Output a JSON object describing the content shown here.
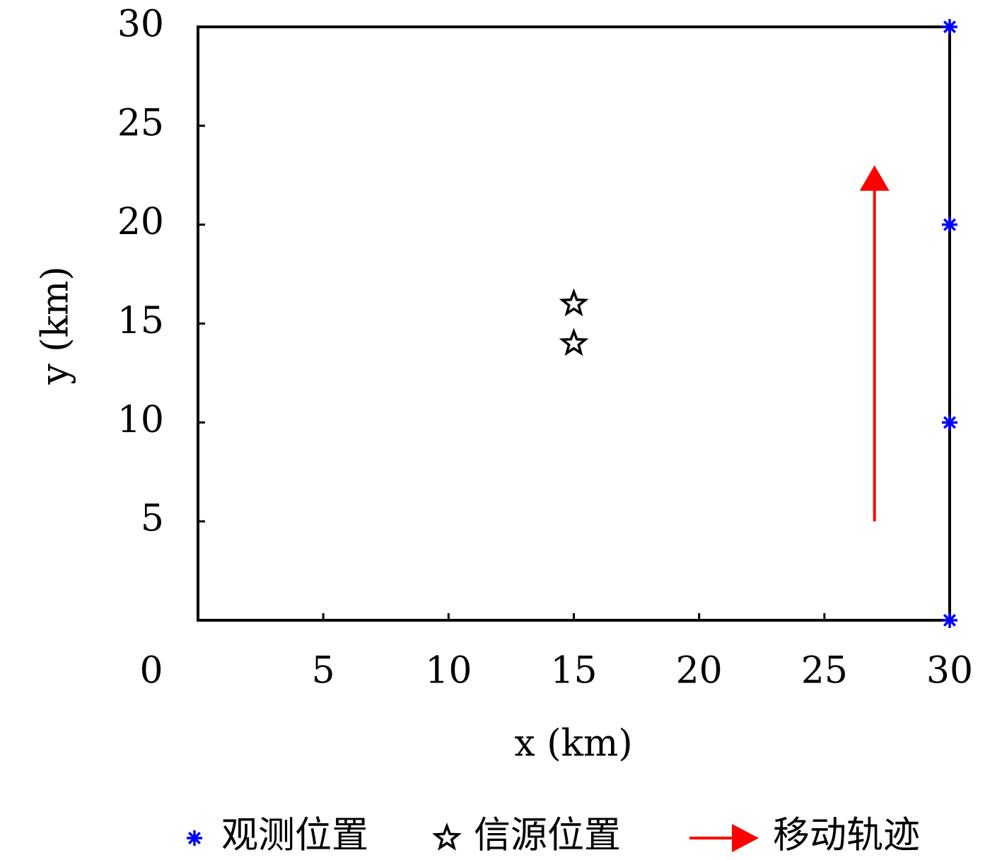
{
  "chart_data": {
    "type": "scatter",
    "xlabel": "x (km)",
    "ylabel": "y (km)",
    "xlim": [
      0,
      30
    ],
    "ylim": [
      0,
      30
    ],
    "xticks": [
      0,
      5,
      10,
      15,
      20,
      25,
      30
    ],
    "yticks": [
      5,
      10,
      15,
      20,
      25,
      30
    ],
    "legend": "bottom",
    "series": [
      {
        "name": "观测位置",
        "color": "#0000ff",
        "marker": "asterisk",
        "x": [
          30,
          30,
          30,
          30
        ],
        "y": [
          0,
          10,
          20,
          30
        ]
      },
      {
        "name": "信源位置",
        "color": "#000000",
        "marker": "star",
        "x": [
          15,
          15
        ],
        "y": [
          14,
          16
        ]
      },
      {
        "name": "移动轨迹",
        "color": "#ff0000",
        "marker": "arrow",
        "x": [
          27,
          27
        ],
        "y": [
          5,
          23
        ]
      }
    ]
  }
}
